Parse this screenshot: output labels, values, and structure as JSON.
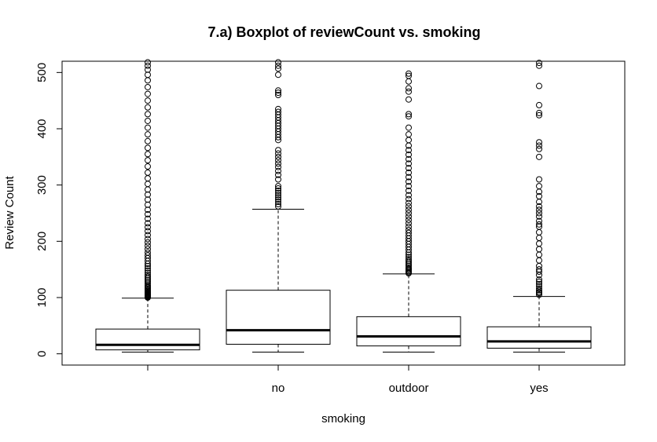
{
  "chart_data": {
    "type": "boxplot",
    "title": "7.a) Boxplot of reviewCount vs. smoking",
    "xlabel": "smoking",
    "ylabel": "Review Count",
    "ylim": [
      -20,
      520
    ],
    "y_ticks": [
      0,
      100,
      200,
      300,
      400,
      500
    ],
    "categories": [
      "",
      "no",
      "outdoor",
      "yes"
    ],
    "boxes": [
      {
        "category": "",
        "lower_whisker": 3,
        "q1": 7,
        "median": 16,
        "q3": 44,
        "upper_whisker": 99,
        "outliers": [
          100,
          101,
          102,
          103,
          104,
          105,
          106,
          107,
          108,
          109,
          110,
          112,
          114,
          116,
          118,
          120,
          122,
          125,
          128,
          131,
          134,
          137,
          140,
          144,
          148,
          152,
          156,
          160,
          165,
          170,
          175,
          180,
          186,
          192,
          198,
          204,
          211,
          218,
          225,
          232,
          240,
          248,
          256,
          265,
          274,
          283,
          292,
          302,
          312,
          322,
          333,
          344,
          355,
          366,
          378,
          390,
          402,
          414,
          426,
          438,
          450,
          462,
          474,
          486,
          496,
          505,
          512,
          518
        ]
      },
      {
        "category": "no",
        "lower_whisker": 3,
        "q1": 17,
        "median": 42,
        "q3": 113,
        "upper_whisker": 257,
        "outliers": [
          262,
          266,
          270,
          274,
          278,
          282,
          286,
          290,
          294,
          298,
          310,
          318,
          325,
          332,
          338,
          344,
          350,
          356,
          362,
          380,
          385,
          390,
          395,
          400,
          405,
          410,
          415,
          420,
          425,
          430,
          435,
          460,
          464,
          468,
          496,
          507,
          512,
          518
        ]
      },
      {
        "category": "outdoor",
        "lower_whisker": 3,
        "q1": 14,
        "median": 31,
        "q3": 66,
        "upper_whisker": 142,
        "outliers": [
          143,
          145,
          147,
          149,
          151,
          153,
          156,
          159,
          162,
          165,
          168,
          172,
          176,
          180,
          185,
          190,
          195,
          200,
          205,
          210,
          215,
          220,
          226,
          232,
          238,
          244,
          250,
          256,
          262,
          268,
          275,
          282,
          290,
          298,
          306,
          314,
          322,
          330,
          338,
          346,
          354,
          362,
          370,
          380,
          390,
          402,
          422,
          426,
          452,
          466,
          472,
          484,
          494,
          498
        ]
      },
      {
        "category": "yes",
        "lower_whisker": 3,
        "q1": 10,
        "median": 22,
        "q3": 48,
        "upper_whisker": 102,
        "outliers": [
          105,
          108,
          110,
          113,
          116,
          120,
          124,
          128,
          132,
          140,
          146,
          150,
          156,
          166,
          176,
          186,
          196,
          206,
          216,
          226,
          230,
          236,
          244,
          250,
          256,
          262,
          270,
          280,
          288,
          298,
          310,
          350,
          364,
          370,
          376,
          424,
          428,
          442,
          476,
          512,
          517
        ]
      }
    ]
  }
}
